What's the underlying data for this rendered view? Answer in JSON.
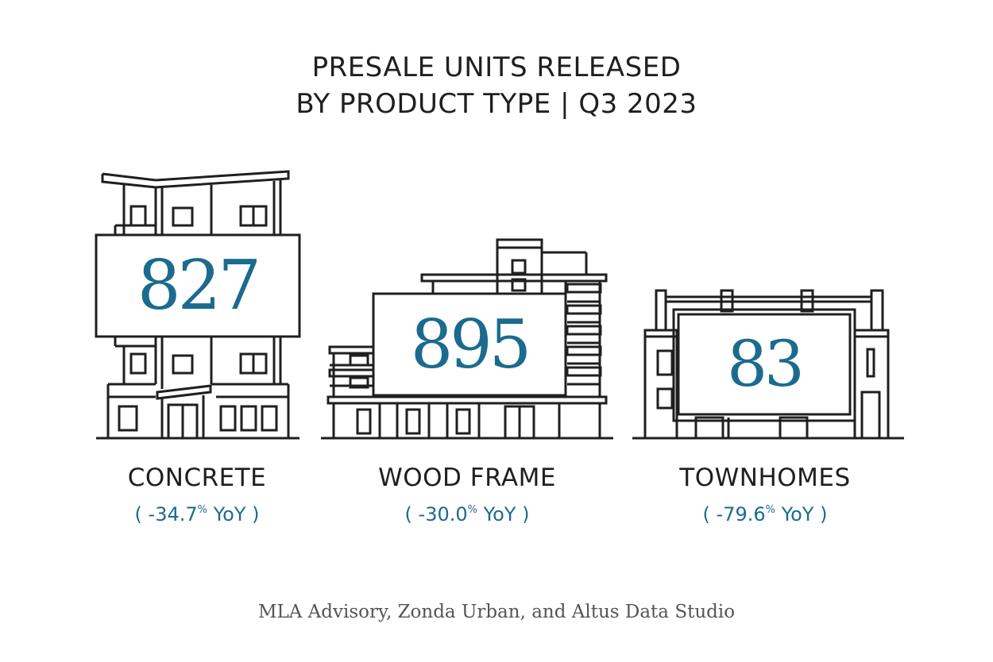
{
  "title": {
    "line1": "PRESALE UNITS RELEASED",
    "line2": "BY PRODUCT TYPE  |  Q3 2023"
  },
  "categories": [
    {
      "value": "827",
      "label": "CONCRETE",
      "yoy_prefix": "( -34.7",
      "yoy_suffix": " YoY )",
      "percent_sign": "%"
    },
    {
      "value": "895",
      "label": "WOOD FRAME",
      "yoy_prefix": "( -30.0",
      "yoy_suffix": " YoY )",
      "percent_sign": "%"
    },
    {
      "value": "83",
      "label": "TOWNHOMES",
      "yoy_prefix": "( -79.6",
      "yoy_suffix": " YoY )",
      "percent_sign": "%"
    }
  ],
  "source": "MLA Advisory, Zonda Urban, and Altus Data Studio",
  "colors": {
    "accent": "#1b6b8e",
    "line": "#1f1f1f",
    "source": "#555555"
  },
  "icons": [
    "concrete-building-icon",
    "wood-frame-building-icon",
    "townhome-building-icon"
  ]
}
